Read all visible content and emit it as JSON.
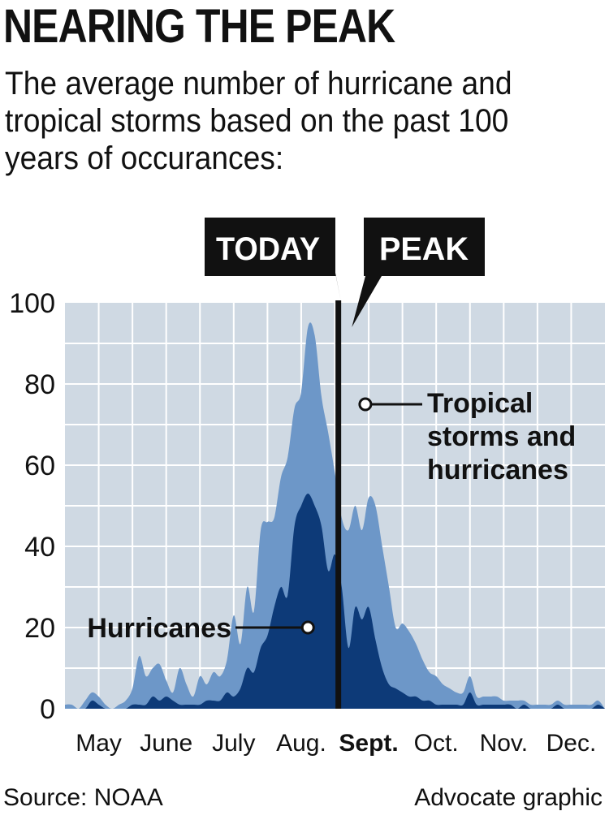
{
  "header": {
    "title": "NEARING THE PEAK",
    "subtitle": "The average number of hurricane and tropical storms based on the past 100 years of occurances:"
  },
  "footer": {
    "source": "Source: NOAA",
    "credit": "Advocate graphic"
  },
  "colors": {
    "plot_background": "#cfd9e3",
    "grid": "#ffffff",
    "tropical_fill": "#6d97c8",
    "hurricane_fill": "#0d3a78",
    "marker_black": "#111111"
  },
  "chart_data": {
    "type": "area",
    "title": "NEARING THE PEAK",
    "subtitle": "The average number of hurricane and tropical storms based on the past 100 years of occurances:",
    "xlabel": "",
    "ylabel": "",
    "ylim": [
      0,
      100
    ],
    "yticks": [
      0,
      20,
      40,
      60,
      80,
      100
    ],
    "xlim": [
      0,
      8
    ],
    "month_labels": [
      "May",
      "June",
      "July",
      "Aug.",
      "Sept.",
      "Oct.",
      "Nov.",
      "Dec."
    ],
    "month_label_x": [
      0.5,
      1.5,
      2.5,
      3.5,
      4.5,
      5.5,
      6.5,
      7.5
    ],
    "highlight_month": "Sept.",
    "grid": true,
    "markers": [
      {
        "label": "TODAY",
        "x": 4.05
      },
      {
        "label": "PEAK",
        "x": 4.25
      }
    ],
    "annotations": {
      "tropical": {
        "lines": [
          "Tropical",
          "storms and",
          "hurricanes"
        ],
        "x": 4.45,
        "y": 75
      },
      "hurricanes": {
        "label": "Hurricanes",
        "x": 3.6,
        "y": 20
      }
    },
    "series": [
      {
        "name": "Tropical storms and hurricanes",
        "x": [
          0,
          0.1,
          0.2,
          0.3,
          0.4,
          0.5,
          0.6,
          0.7,
          0.8,
          0.9,
          1.0,
          1.1,
          1.2,
          1.3,
          1.4,
          1.5,
          1.6,
          1.7,
          1.8,
          1.9,
          2.0,
          2.1,
          2.2,
          2.3,
          2.4,
          2.5,
          2.6,
          2.7,
          2.8,
          2.9,
          3.0,
          3.1,
          3.2,
          3.3,
          3.4,
          3.5,
          3.6,
          3.7,
          3.8,
          3.9,
          4.0,
          4.1,
          4.2,
          4.3,
          4.4,
          4.5,
          4.6,
          4.7,
          4.8,
          4.9,
          5.0,
          5.1,
          5.2,
          5.3,
          5.4,
          5.5,
          5.6,
          5.7,
          5.8,
          5.9,
          6.0,
          6.1,
          6.2,
          6.3,
          6.4,
          6.5,
          6.6,
          6.7,
          6.8,
          6.9,
          7.0,
          7.1,
          7.2,
          7.3,
          7.4,
          7.5,
          7.6,
          7.7,
          7.8,
          7.9,
          8.0
        ],
        "values": [
          1,
          1,
          0,
          2,
          4,
          3,
          1,
          0,
          1,
          2,
          5,
          13,
          8,
          10,
          11,
          7,
          4,
          10,
          6,
          3,
          8,
          6,
          9,
          8,
          12,
          23,
          16,
          30,
          24,
          44,
          46,
          47,
          57,
          62,
          74,
          78,
          94,
          92,
          77,
          68,
          58,
          47,
          44,
          50,
          44,
          52,
          50,
          40,
          30,
          20,
          21,
          19,
          16,
          12,
          9,
          8,
          6,
          5,
          4,
          4,
          8,
          3,
          3,
          3,
          3,
          2,
          2,
          2,
          2,
          1,
          1,
          1,
          1,
          2,
          1,
          1,
          1,
          1,
          1,
          2,
          0
        ]
      },
      {
        "name": "Hurricanes",
        "x": [
          0,
          0.1,
          0.2,
          0.3,
          0.4,
          0.5,
          0.6,
          0.7,
          0.8,
          0.9,
          1.0,
          1.1,
          1.2,
          1.3,
          1.4,
          1.5,
          1.6,
          1.7,
          1.8,
          1.9,
          2.0,
          2.1,
          2.2,
          2.3,
          2.4,
          2.5,
          2.6,
          2.7,
          2.8,
          2.9,
          3.0,
          3.1,
          3.2,
          3.3,
          3.4,
          3.5,
          3.6,
          3.7,
          3.8,
          3.9,
          4.0,
          4.1,
          4.2,
          4.3,
          4.4,
          4.5,
          4.6,
          4.7,
          4.8,
          4.9,
          5.0,
          5.1,
          5.2,
          5.3,
          5.4,
          5.5,
          5.6,
          5.7,
          5.8,
          5.9,
          6.0,
          6.1,
          6.2,
          6.3,
          6.4,
          6.5,
          6.6,
          6.7,
          6.8,
          6.9,
          7.0,
          7.1,
          7.2,
          7.3,
          7.4,
          7.5,
          7.6,
          7.7,
          7.8,
          7.9,
          8.0
        ],
        "values": [
          0,
          0,
          0,
          0,
          2,
          1,
          0,
          0,
          0,
          0,
          1,
          1,
          1,
          3,
          2,
          3,
          2,
          1,
          1,
          1,
          1,
          2,
          2,
          2,
          4,
          3,
          5,
          10,
          9,
          15,
          18,
          25,
          30,
          28,
          45,
          50,
          53,
          50,
          45,
          34,
          38,
          30,
          15,
          25,
          22,
          25,
          17,
          10,
          6,
          5,
          4,
          3,
          3,
          2,
          2,
          1,
          1,
          1,
          1,
          1,
          4,
          1,
          1,
          1,
          1,
          1,
          1,
          0,
          1,
          0,
          0,
          0,
          0,
          1,
          0,
          0,
          0,
          0,
          0,
          1,
          0
        ]
      }
    ]
  }
}
